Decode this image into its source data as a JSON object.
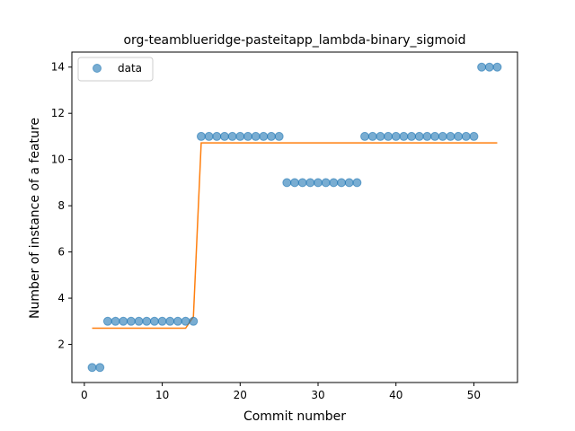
{
  "chart_data": {
    "type": "scatter",
    "title": "org-teamblueridge-pasteitapp_lambda-binary_sigmoid",
    "xlabel": "Commit number",
    "ylabel": "Number of instance of a feature",
    "xlim": [
      -1.6,
      55.6
    ],
    "ylim": [
      0.35,
      14.65
    ],
    "xticks": [
      0,
      10,
      20,
      30,
      40,
      50
    ],
    "yticks": [
      2,
      4,
      6,
      8,
      10,
      12,
      14
    ],
    "legend": {
      "position": "top-left",
      "entries": [
        "data"
      ]
    },
    "grid": false,
    "colors": {
      "points": "#1f77b4",
      "fit": "#ff7f0e"
    },
    "series": [
      {
        "name": "data",
        "style": "markers",
        "x": [
          1,
          2,
          3,
          4,
          5,
          6,
          7,
          8,
          9,
          10,
          11,
          12,
          13,
          14,
          15,
          16,
          17,
          18,
          19,
          20,
          21,
          22,
          23,
          24,
          25,
          26,
          27,
          28,
          29,
          30,
          31,
          32,
          33,
          34,
          35,
          36,
          37,
          38,
          39,
          40,
          41,
          42,
          43,
          44,
          45,
          46,
          47,
          48,
          49,
          50,
          51,
          52,
          53
        ],
        "y": [
          1,
          1,
          3,
          3,
          3,
          3,
          3,
          3,
          3,
          3,
          3,
          3,
          3,
          3,
          11,
          11,
          11,
          11,
          11,
          11,
          11,
          11,
          11,
          11,
          11,
          9,
          9,
          9,
          9,
          9,
          9,
          9,
          9,
          9,
          9,
          11,
          11,
          11,
          11,
          11,
          11,
          11,
          11,
          11,
          11,
          11,
          11,
          11,
          11,
          11,
          14,
          14,
          14
        ]
      },
      {
        "style": "line",
        "x": [
          1,
          13,
          14,
          15,
          53
        ],
        "y": [
          2.7,
          2.7,
          3.2,
          10.72,
          10.72
        ]
      }
    ]
  }
}
